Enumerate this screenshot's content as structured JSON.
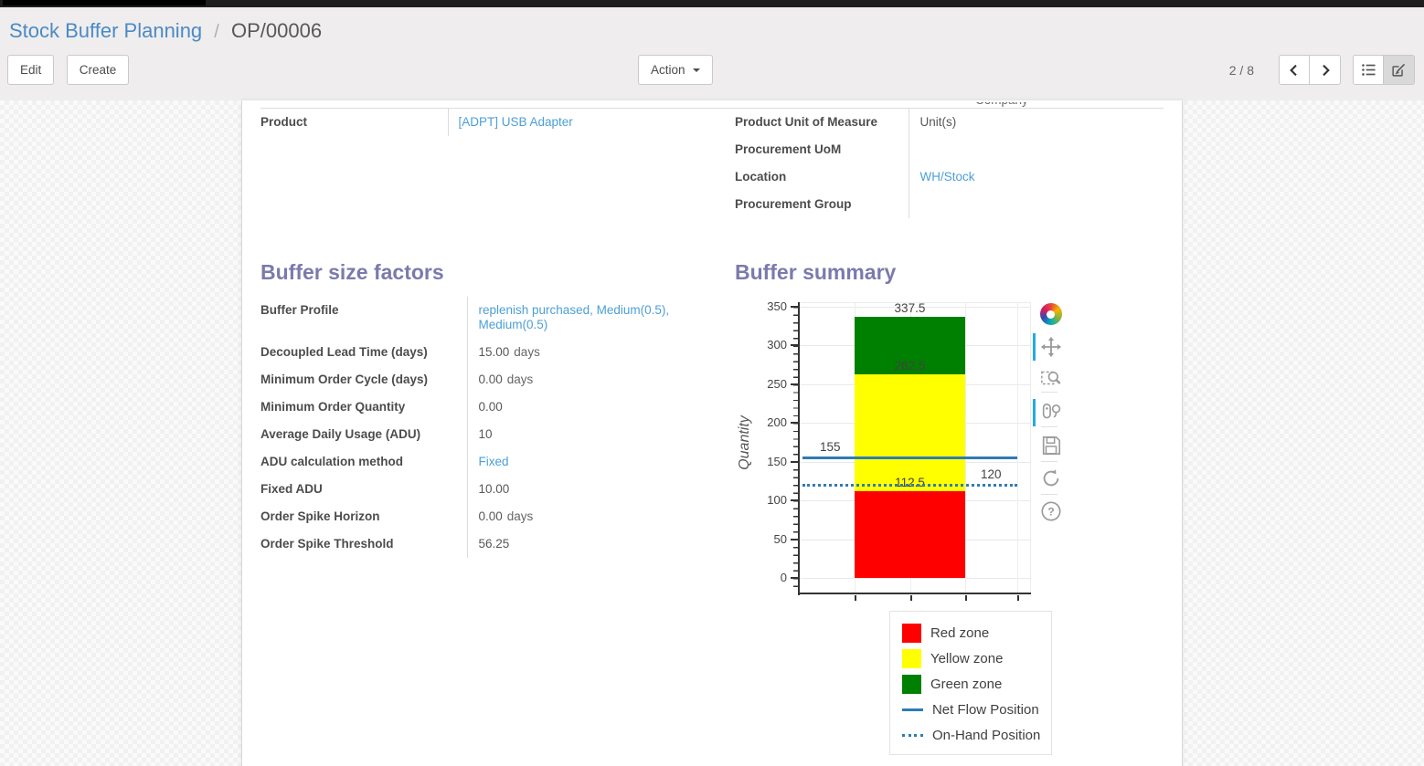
{
  "breadcrumb": {
    "parent": "Stock Buffer Planning",
    "sep": "/",
    "current": "OP/00006"
  },
  "control_panel": {
    "edit_label": "Edit",
    "create_label": "Create",
    "action_label": "Action",
    "pager": "2 / 8"
  },
  "form": {
    "top_left": {
      "rows": [
        {
          "label": "Product",
          "value": "[ADPT] USB Adapter"
        }
      ]
    },
    "top_right": {
      "partial_top_text": "Company",
      "rows": [
        {
          "label": "Product Unit of Measure",
          "value": "Unit(s)"
        },
        {
          "label": "Procurement UoM",
          "value": ""
        },
        {
          "label": "Location",
          "value": "WH/Stock"
        },
        {
          "label": "Procurement Group",
          "value": ""
        }
      ]
    },
    "factors": {
      "title": "Buffer size factors",
      "rows": [
        {
          "label": "Buffer Profile",
          "value": "replenish purchased, Medium(0.5), Medium(0.5)",
          "suffix": ""
        },
        {
          "label": "Decoupled Lead Time (days)",
          "value": "15.00",
          "suffix": "days"
        },
        {
          "label": "Minimum Order Cycle (days)",
          "value": "0.00",
          "suffix": "days"
        },
        {
          "label": "Minimum Order Quantity",
          "value": "0.00",
          "suffix": ""
        },
        {
          "label": "Average Daily Usage (ADU)",
          "value": "10",
          "suffix": ""
        },
        {
          "label": "ADU calculation method",
          "value": "Fixed",
          "suffix": ""
        },
        {
          "label": "Fixed ADU",
          "value": "10.00",
          "suffix": ""
        },
        {
          "label": "Order Spike Horizon",
          "value": "0.00",
          "suffix": "days"
        },
        {
          "label": "Order Spike Threshold",
          "value": "56.25",
          "suffix": ""
        }
      ]
    },
    "summary": {
      "title": "Buffer summary"
    }
  },
  "chart_data": {
    "type": "bar",
    "title": "Buffer summary",
    "ylabel": "Quantity",
    "xlabel": "",
    "ylim": [
      0,
      350
    ],
    "yticks": [
      0,
      50,
      100,
      150,
      200,
      250,
      300,
      350
    ],
    "grid": true,
    "zones": [
      {
        "name": "Red zone",
        "from": 0,
        "to": 112.5,
        "color": "#ff0000"
      },
      {
        "name": "Yellow zone",
        "from": 112.5,
        "to": 262.5,
        "color": "#ffff00"
      },
      {
        "name": "Green zone",
        "from": 262.5,
        "to": 337.5,
        "color": "#008000"
      }
    ],
    "lines": [
      {
        "name": "Net Flow Position",
        "value": 155,
        "style": "solid",
        "color": "#2e7cb6",
        "label_side": "left"
      },
      {
        "name": "On-Hand Position",
        "value": 120,
        "style": "dotted",
        "color": "#2e7cb6",
        "label_side": "right"
      }
    ],
    "bar_labels": [
      337.5,
      262.5,
      112.5
    ],
    "legend_position": "below-right",
    "toolbar_tools": [
      "pan",
      "box-zoom",
      "hover",
      "save",
      "reset",
      "help"
    ],
    "active_tools": [
      "pan",
      "hover"
    ]
  }
}
